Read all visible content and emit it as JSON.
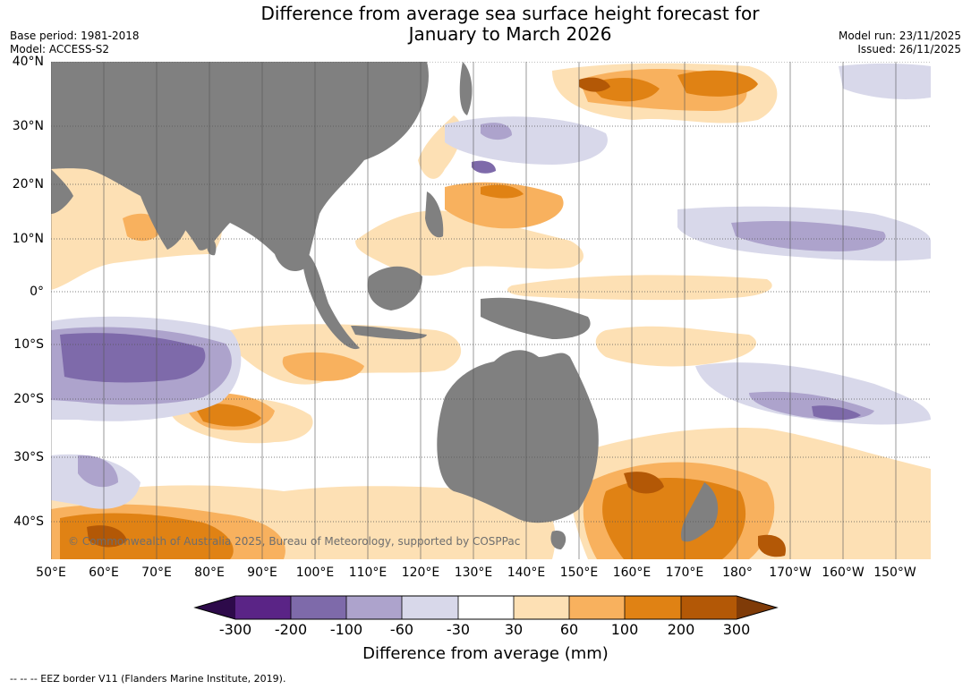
{
  "title": {
    "line1": "Difference from average sea surface height forecast for",
    "line2": "January to March 2026"
  },
  "meta": {
    "base_period": "Base period: 1981-2018",
    "model": "Model: ACCESS-S2",
    "model_run": "Model run: 23/11/2025",
    "issued": "Issued: 26/11/2025"
  },
  "map": {
    "lat_labels": [
      "40°N",
      "30°N",
      "20°N",
      "10°N",
      "0°",
      "10°S",
      "20°S",
      "30°S",
      "40°S"
    ],
    "lon_labels": [
      "50°E",
      "60°E",
      "70°E",
      "80°E",
      "90°E",
      "100°E",
      "110°E",
      "120°E",
      "130°E",
      "140°E",
      "150°E",
      "160°E",
      "170°E",
      "180°",
      "170°W",
      "160°W",
      "150°W"
    ],
    "copyright": "© Commonwealth of Australia 2025, Bureau of Meteorology, supported by COSPPac"
  },
  "legend": {
    "ticks": [
      "-300",
      "-200",
      "-100",
      "-60",
      "-30",
      "30",
      "60",
      "100",
      "200",
      "300"
    ],
    "colors": [
      "#2d0a4a",
      "#5a2486",
      "#7e6aaa",
      "#ada3cc",
      "#d8d8ea",
      "#ffffff",
      "#fde0b4",
      "#f8b15e",
      "#e08214",
      "#b35806",
      "#7f3b08"
    ],
    "units": "Difference from average (mm)"
  },
  "footnote": "--  --  -- EEZ border V11 (Flanders Marine Institute, 2019).",
  "colors": {
    "land": "#808080",
    "grid": "#555555"
  }
}
